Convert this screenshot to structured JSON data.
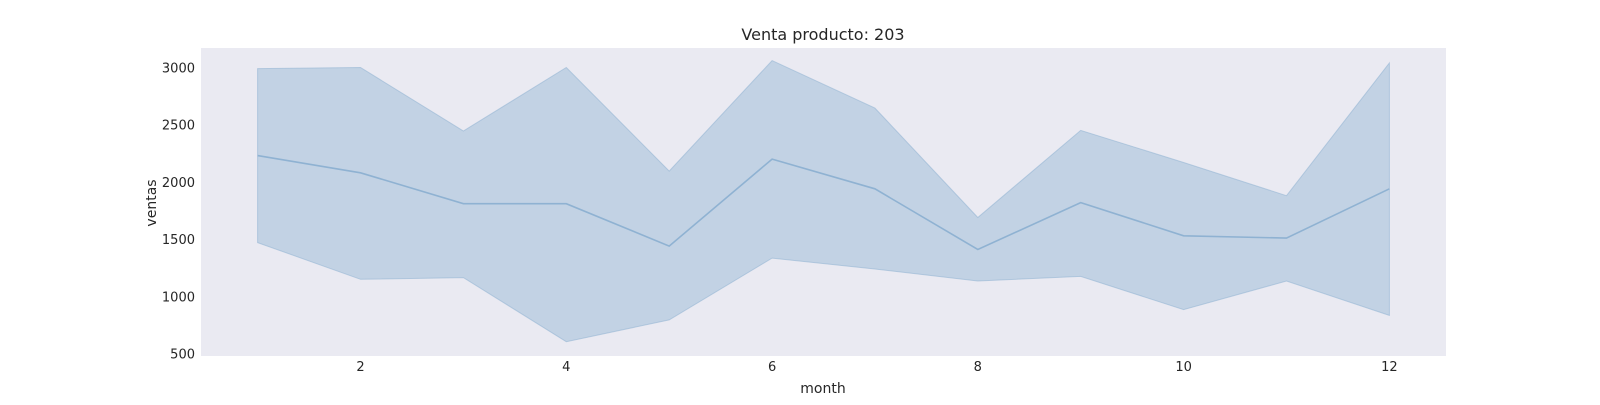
{
  "chart_data": {
    "type": "area",
    "title": "Venta producto: 203",
    "xlabel": "month",
    "ylabel": "ventas",
    "xlim": [
      0.45,
      12.55
    ],
    "ylim": [
      480,
      3170
    ],
    "x_ticks": [
      2,
      4,
      6,
      8,
      10,
      12
    ],
    "y_ticks": [
      500,
      1000,
      1500,
      2000,
      2500,
      3000
    ],
    "grid": false,
    "x": [
      1,
      2,
      3,
      4,
      5,
      6,
      7,
      8,
      9,
      10,
      11,
      12
    ],
    "series": [
      {
        "mean": [
          2230,
          2080,
          1810,
          1810,
          1440,
          2200,
          1940,
          1410,
          1820,
          1530,
          1510,
          1940
        ],
        "lower": [
          1470,
          1150,
          1165,
          605,
          795,
          1335,
          1240,
          1135,
          1175,
          885,
          1135,
          835
        ],
        "upper": [
          2990,
          3000,
          2445,
          3000,
          2095,
          3060,
          2645,
          1690,
          2450,
          2170,
          1880,
          3040
        ]
      }
    ],
    "colors": {
      "background": "#eaeaf2",
      "band_fill": "#a9c3dc",
      "line": "#8fb2d2",
      "text": "#262626"
    }
  }
}
